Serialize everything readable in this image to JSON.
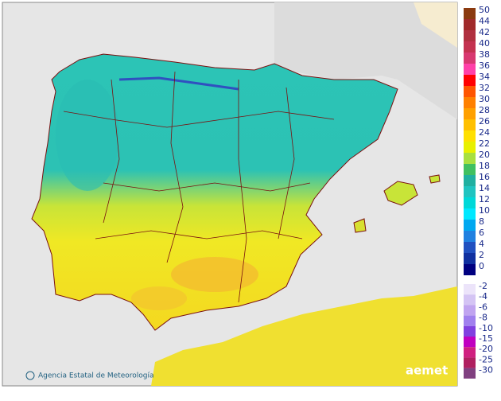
{
  "legend": {
    "positive": [
      {
        "label": 50,
        "color": "#8b3a0f"
      },
      {
        "label": 44,
        "color": "#a02a2a"
      },
      {
        "label": 42,
        "color": "#b03040"
      },
      {
        "label": 40,
        "color": "#c43250"
      },
      {
        "label": 38,
        "color": "#d83870"
      },
      {
        "label": 36,
        "color": "#ff40a8"
      },
      {
        "label": 34,
        "color": "#ff0000"
      },
      {
        "label": 32,
        "color": "#ff5500"
      },
      {
        "label": 30,
        "color": "#ff8000"
      },
      {
        "label": 28,
        "color": "#ffa000"
      },
      {
        "label": 26,
        "color": "#ffc000"
      },
      {
        "label": 24,
        "color": "#ffe000"
      },
      {
        "label": 22,
        "color": "#e8f000"
      },
      {
        "label": 20,
        "color": "#a8e040"
      },
      {
        "label": 18,
        "color": "#40c060"
      },
      {
        "label": 16,
        "color": "#20b0a0"
      },
      {
        "label": 14,
        "color": "#20c4c0"
      },
      {
        "label": 12,
        "color": "#00d8d8"
      },
      {
        "label": 10,
        "color": "#00e8ff"
      },
      {
        "label": 8,
        "color": "#00a8f0"
      },
      {
        "label": 6,
        "color": "#2080e0"
      },
      {
        "label": 4,
        "color": "#2050c0"
      },
      {
        "label": 2,
        "color": "#1030a0"
      },
      {
        "label": 0,
        "color": "#000080"
      }
    ],
    "negative": [
      {
        "label": -2,
        "color": "#ece4fa"
      },
      {
        "label": -4,
        "color": "#d4c4f4"
      },
      {
        "label": -6,
        "color": "#c0a4f0"
      },
      {
        "label": -8,
        "color": "#a080ee"
      },
      {
        "label": -10,
        "color": "#8040e0"
      },
      {
        "label": -15,
        "color": "#c000c0"
      },
      {
        "label": -20,
        "color": "#d02080"
      },
      {
        "label": -25,
        "color": "#b02060"
      },
      {
        "label": -30,
        "color": "#804080"
      }
    ]
  },
  "credit": "Agencia Estatal de Meteorología",
  "logo": "aemet"
}
